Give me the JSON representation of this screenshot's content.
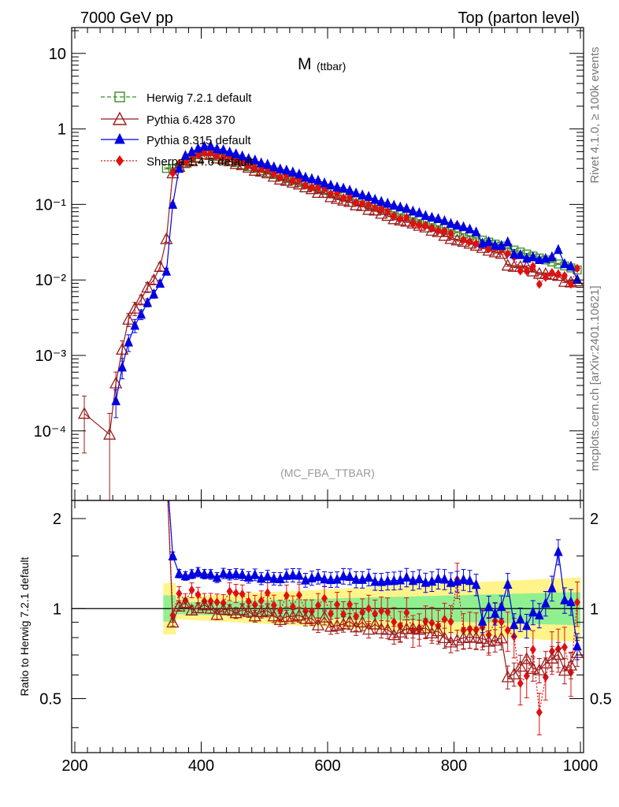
{
  "header": {
    "energy": "7000 GeV pp",
    "process": "Top (parton level)"
  },
  "side": {
    "rivet": "Rivet 4.1.0, ≥ 100k events",
    "mcplots": "mcplots.cern.ch [arXiv:2401.10621]"
  },
  "chart_data": {
    "type": "line",
    "title": "M",
    "title_sub": "(ttbar)",
    "analysis_label": "(MC_FBA_TTBAR)",
    "xlabel": "",
    "ylabel": "",
    "ratio_ylabel": "Ratio to Herwig 7.2.1 default",
    "xlim": [
      195,
      1005
    ],
    "ylim_log": [
      1.2e-05,
      22
    ],
    "ratio_ylim": [
      0.33,
      2.3
    ],
    "x_ticks": [
      "200",
      "400",
      "600",
      "800",
      "1000"
    ],
    "y_ticks": [
      "10",
      "1",
      "10⁻¹",
      "10⁻²",
      "10⁻³",
      "10⁻⁴"
    ],
    "ratio_ticks": [
      "2",
      "1",
      "0.5"
    ],
    "legend_position": "top-left",
    "colors": {
      "herwig": "#3c8c28",
      "pythia6": "#9b1b1b",
      "pythia8": "#0000e0",
      "sherpa": "#e01010",
      "band_inner": "#90f090",
      "band_outer": "#fff48a"
    },
    "series": [
      {
        "name": "Herwig 7.2.1 default",
        "key": "herwig"
      },
      {
        "name": "Pythia 6.428 370",
        "key": "pythia6"
      },
      {
        "name": "Pythia 8.315 default",
        "key": "pythia8"
      },
      {
        "name": "Sherpa 1.4.6 default",
        "key": "sherpa"
      }
    ]
  }
}
